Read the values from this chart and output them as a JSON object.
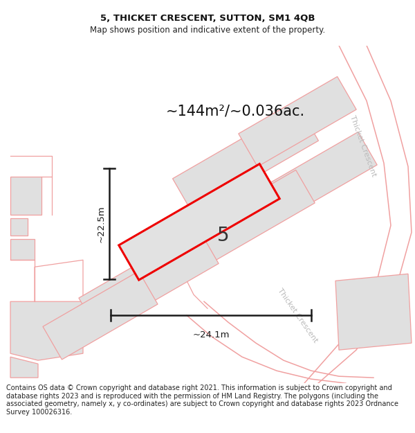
{
  "title_line1": "5, THICKET CRESCENT, SUTTON, SM1 4QB",
  "title_line2": "Map shows position and indicative extent of the property.",
  "area_label": "~144m²/~0.036ac.",
  "plot_number": "5",
  "dim_width": "~24.1m",
  "dim_height": "~22.5m",
  "road_label1": "Thicket Crescent",
  "road_label2": "Thicket Crescent",
  "footer_text": "Contains OS data © Crown copyright and database right 2021. This information is subject to Crown copyright and database rights 2023 and is reproduced with the permission of HM Land Registry. The polygons (including the associated geometry, namely x, y co-ordinates) are subject to Crown copyright and database rights 2023 Ordnance Survey 100026316.",
  "bg_color": "#ffffff",
  "map_bg": "#ffffff",
  "plot_fill": "#e2e2e2",
  "plot_border": "#ee0000",
  "neighbor_fill": "#e0e0e0",
  "neighbor_border": "#f0a0a0",
  "road_color": "#f0a0a0",
  "dim_color": "#1a1a1a",
  "footer_fontsize": 7.0,
  "title_fontsize": 9.5,
  "subtitle_fontsize": 8.5,
  "area_fontsize": 15
}
